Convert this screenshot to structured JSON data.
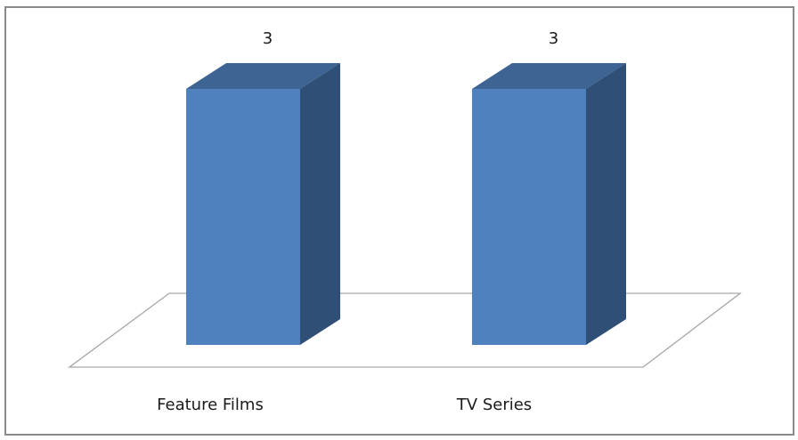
{
  "chart_data": {
    "type": "bar",
    "categories": [
      "Feature Films",
      "TV Series"
    ],
    "values": [
      3,
      3
    ],
    "title": "",
    "xlabel": "",
    "ylabel": "",
    "ylim": [
      0,
      3
    ],
    "grid": false,
    "legend": "none",
    "three_d": true
  },
  "colors": {
    "bar_front": "#4f81bd",
    "bar_top": "#3d6493",
    "bar_side": "#2f4f77",
    "floor_stroke": "#a6a6a6",
    "frame_border": "#8a8a8a"
  }
}
